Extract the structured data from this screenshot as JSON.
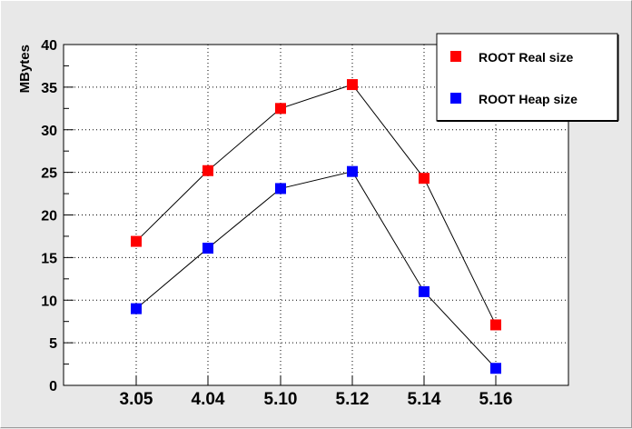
{
  "chart_data": {
    "type": "line",
    "ylabel": "MBytes",
    "xlabel": "",
    "categories": [
      "3.05",
      "4.04",
      "5.10",
      "5.12",
      "5.14",
      "5.16"
    ],
    "ylim": [
      0,
      40
    ],
    "yticks": [
      0,
      5,
      10,
      15,
      20,
      25,
      30,
      35,
      40
    ],
    "grid": true,
    "legend_position": "top-right",
    "series": [
      {
        "name": "ROOT Real size",
        "color": "#ff0000",
        "values": [
          16.9,
          25.2,
          32.5,
          35.3,
          24.3,
          7.1
        ]
      },
      {
        "name": "ROOT Heap size",
        "color": "#0000ff",
        "values": [
          9.0,
          16.1,
          23.1,
          25.1,
          11.0,
          2.0
        ]
      }
    ]
  }
}
